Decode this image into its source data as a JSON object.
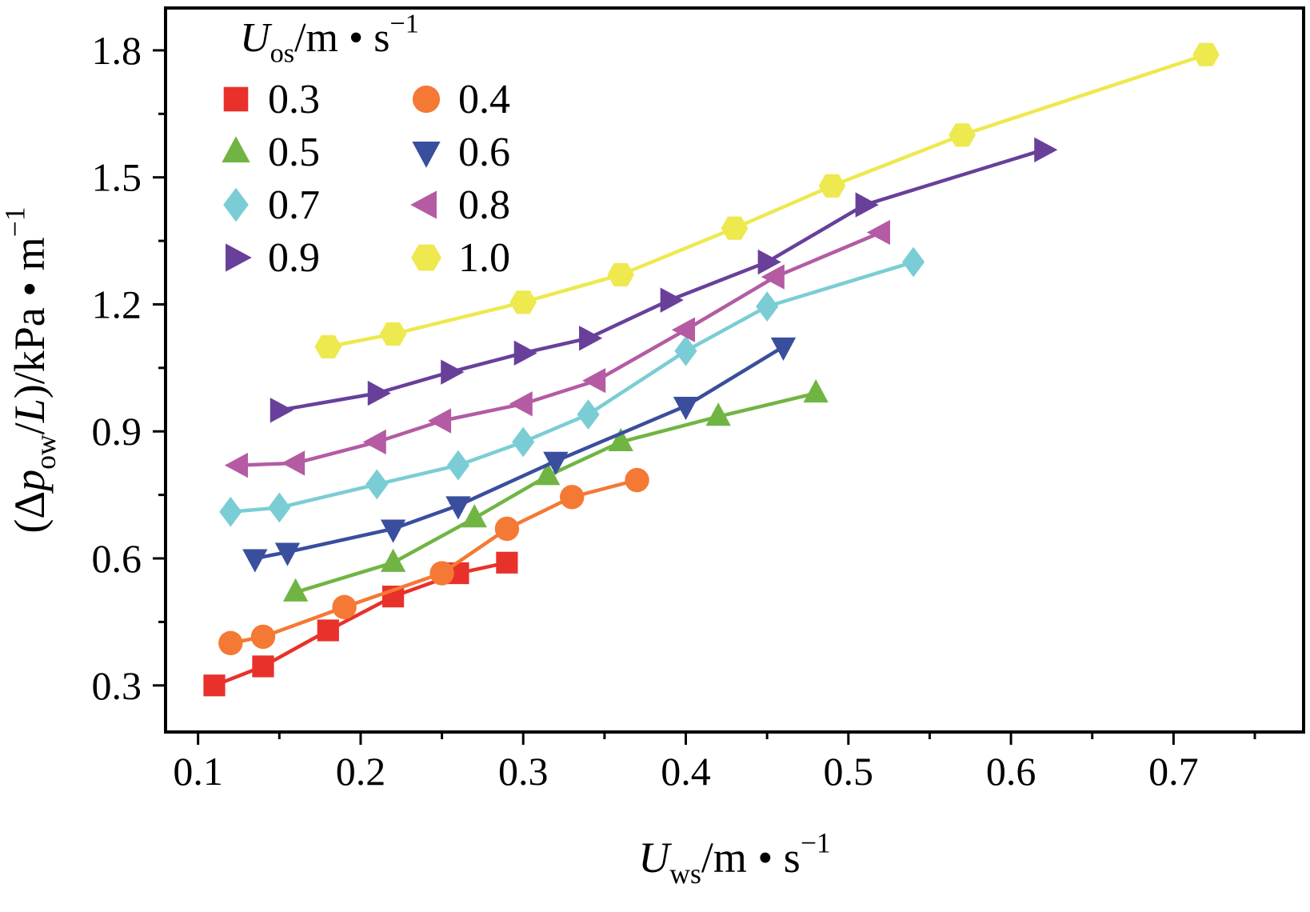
{
  "chart_data": {
    "type": "line",
    "title": "",
    "xlabel_parts": [
      {
        "t": "U",
        "s": "i"
      },
      {
        "t": "ws",
        "s": "sub"
      },
      {
        "t": "/m",
        "s": "n"
      },
      {
        "t": " • ",
        "s": "n"
      },
      {
        "t": "s",
        "s": "n"
      },
      {
        "t": "−1",
        "s": "sup"
      }
    ],
    "ylabel_parts": [
      {
        "t": "(Δ",
        "s": "n"
      },
      {
        "t": "p",
        "s": "i"
      },
      {
        "t": "ow",
        "s": "sub"
      },
      {
        "t": "/",
        "s": "n"
      },
      {
        "t": "L",
        "s": "i"
      },
      {
        "t": ")/kPa",
        "s": "n"
      },
      {
        "t": " • ",
        "s": "n"
      },
      {
        "t": "m",
        "s": "n"
      },
      {
        "t": "−1",
        "s": "sup"
      }
    ],
    "legend_title_parts": [
      {
        "t": "U",
        "s": "i"
      },
      {
        "t": "os",
        "s": "sub"
      },
      {
        "t": "/m",
        "s": "n"
      },
      {
        "t": " • ",
        "s": "n"
      },
      {
        "t": "s",
        "s": "n"
      },
      {
        "t": "−1",
        "s": "sup"
      }
    ],
    "xlim": [
      0.08,
      0.78
    ],
    "ylim": [
      0.19,
      1.9
    ],
    "xticks": [
      0.1,
      0.2,
      0.3,
      0.4,
      0.5,
      0.6,
      0.7
    ],
    "yticks": [
      0.3,
      0.6,
      0.9,
      1.2,
      1.5,
      1.8
    ],
    "x_minor_ticks": [
      0.15,
      0.25,
      0.35,
      0.45,
      0.55,
      0.65,
      0.75
    ],
    "y_minor_ticks": [
      0.45,
      0.75,
      1.05,
      1.35,
      1.65
    ],
    "grid": false,
    "legend_position": "top-left-inside",
    "series": [
      {
        "name": "0.3",
        "marker": "square",
        "color": "#e8312a",
        "x": [
          0.11,
          0.14,
          0.18,
          0.22,
          0.26,
          0.29
        ],
        "y": [
          0.3,
          0.345,
          0.43,
          0.51,
          0.565,
          0.59
        ]
      },
      {
        "name": "0.4",
        "marker": "circle",
        "color": "#f47935",
        "x": [
          0.12,
          0.14,
          0.19,
          0.25,
          0.29,
          0.33,
          0.37
        ],
        "y": [
          0.4,
          0.415,
          0.485,
          0.565,
          0.67,
          0.745,
          0.785
        ]
      },
      {
        "name": "0.5",
        "marker": "triangle-up",
        "color": "#70b544",
        "x": [
          0.16,
          0.22,
          0.27,
          0.315,
          0.36,
          0.42,
          0.48
        ],
        "y": [
          0.52,
          0.59,
          0.695,
          0.795,
          0.875,
          0.935,
          0.99
        ]
      },
      {
        "name": "0.6",
        "marker": "triangle-down",
        "color": "#3a4e9e",
        "x": [
          0.135,
          0.155,
          0.22,
          0.26,
          0.32,
          0.4,
          0.46
        ],
        "y": [
          0.6,
          0.615,
          0.67,
          0.725,
          0.83,
          0.96,
          1.1
        ]
      },
      {
        "name": "0.7",
        "marker": "diamond",
        "color": "#7acdd4",
        "x": [
          0.12,
          0.15,
          0.21,
          0.26,
          0.3,
          0.34,
          0.4,
          0.45,
          0.54
        ],
        "y": [
          0.71,
          0.72,
          0.775,
          0.82,
          0.875,
          0.94,
          1.09,
          1.195,
          1.3
        ]
      },
      {
        "name": "0.8",
        "marker": "triangle-left",
        "color": "#b45ba3",
        "x": [
          0.125,
          0.16,
          0.21,
          0.25,
          0.3,
          0.345,
          0.4,
          0.455,
          0.52
        ],
        "y": [
          0.82,
          0.825,
          0.875,
          0.925,
          0.965,
          1.02,
          1.14,
          1.265,
          1.37
        ]
      },
      {
        "name": "0.9",
        "marker": "triangle-right",
        "color": "#68409a",
        "x": [
          0.15,
          0.21,
          0.255,
          0.3,
          0.34,
          0.39,
          0.45,
          0.51,
          0.62
        ],
        "y": [
          0.95,
          0.99,
          1.04,
          1.085,
          1.12,
          1.21,
          1.3,
          1.435,
          1.565
        ]
      },
      {
        "name": "1.0",
        "marker": "hexagon",
        "color": "#ede94e",
        "x": [
          0.18,
          0.22,
          0.3,
          0.36,
          0.43,
          0.49,
          0.57,
          0.72
        ],
        "y": [
          1.1,
          1.13,
          1.205,
          1.27,
          1.38,
          1.48,
          1.6,
          1.79
        ]
      }
    ],
    "tick_label_decimals": 1,
    "axis_color": "#000000"
  }
}
